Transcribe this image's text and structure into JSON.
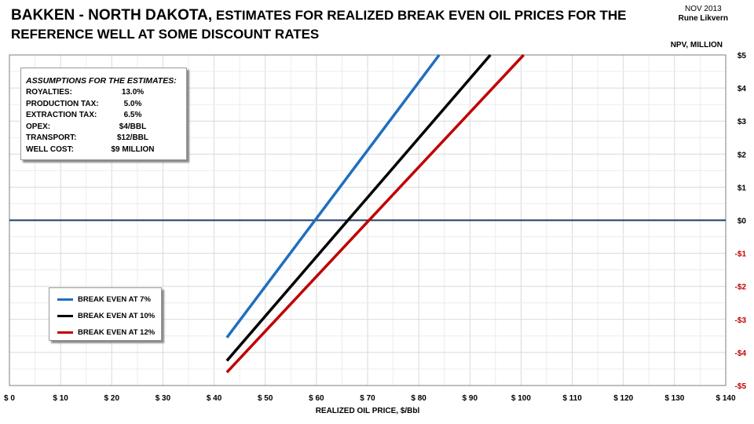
{
  "title": {
    "part1": "BAKKEN - NORTH DAKOTA,",
    "part2": " ESTIMATES FOR  REALIZED BREAK EVEN OIL PRICES FOR THE",
    "line2": "REFERENCE WELL AT SOME DISCOUNT RATES"
  },
  "credit": {
    "date": "NOV 2013",
    "author": "Rune Likvern"
  },
  "assumptions": {
    "heading": "ASSUMPTIONS FOR THE ESTIMATES:",
    "rows": [
      {
        "label": "ROYALTIES:",
        "value": "13.0%"
      },
      {
        "label": "PRODUCTION TAX:",
        "value": "5.0%"
      },
      {
        "label": "EXTRACTION TAX:",
        "value": "6.5%"
      },
      {
        "label": "OPEX:",
        "value": "$4/BBL"
      },
      {
        "label": "TRANSPORT:",
        "value": "$12/BBL"
      },
      {
        "label": "WELL COST:",
        "value": "$9 MILLION"
      }
    ]
  },
  "chart_data": {
    "type": "line",
    "title": "BAKKEN - NORTH DAKOTA, ESTIMATES FOR REALIZED BREAK EVEN OIL PRICES FOR THE REFERENCE WELL AT SOME DISCOUNT RATES",
    "xlabel": "REALIZED OIL PRICE, $/Bbl",
    "ylabel": "NPV, MILLION",
    "xlim": [
      0,
      140
    ],
    "ylim": [
      -5,
      5
    ],
    "xticks": [
      "$ 0",
      "$ 10",
      "$ 20",
      "$ 30",
      "$ 40",
      "$ 50",
      "$ 60",
      "$ 70",
      "$ 80",
      "$ 90",
      "$ 100",
      "$ 110",
      "$ 120",
      "$ 130",
      "$ 140"
    ],
    "yticks": [
      "$5",
      "$4",
      "$3",
      "$2",
      "$1",
      "$0",
      "-$1",
      "-$2",
      "-$3",
      "-$4",
      "-$5"
    ],
    "legend_position": "bottom-left",
    "series": [
      {
        "name": "BREAK EVEN AT 7%",
        "color": "#1f6fbf",
        "x": [
          42.5,
          84.0
        ],
        "y": [
          -3.55,
          5.0
        ]
      },
      {
        "name": "BREAK EVEN AT 10%",
        "color": "#000000",
        "x": [
          42.5,
          94.0
        ],
        "y": [
          -4.25,
          5.0
        ]
      },
      {
        "name": "BREAK EVEN AT 12%",
        "color": "#c00000",
        "x": [
          42.5,
          100.5
        ],
        "y": [
          -4.6,
          5.0
        ]
      }
    ]
  }
}
